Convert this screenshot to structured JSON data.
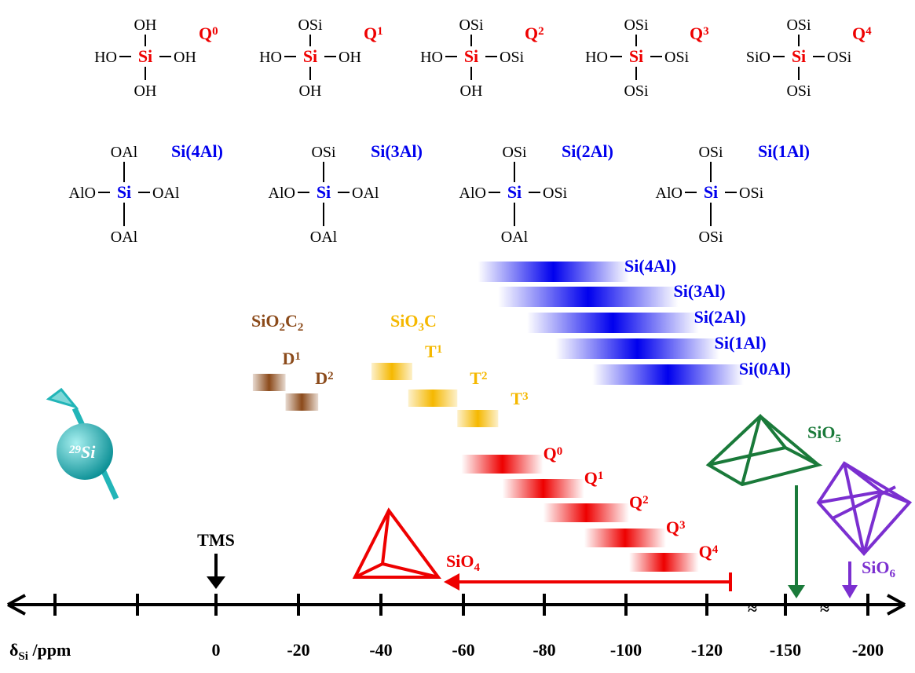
{
  "q_structures": [
    {
      "center": "Si",
      "top": "OH",
      "left": "HO",
      "right": "OH",
      "bottom": "OH",
      "label": "Q",
      "sup": "0"
    },
    {
      "center": "Si",
      "top": "OSi",
      "left": "HO",
      "right": "OH",
      "bottom": "OH",
      "label": "Q",
      "sup": "1"
    },
    {
      "center": "Si",
      "top": "OSi",
      "left": "HO",
      "right": "OSi",
      "bottom": "OH",
      "label": "Q",
      "sup": "2"
    },
    {
      "center": "Si",
      "top": "OSi",
      "left": "HO",
      "right": "OSi",
      "bottom": "OSi",
      "label": "Q",
      "sup": "3"
    },
    {
      "center": "Si",
      "top": "OSi",
      "left": "SiO",
      "right": "OSi",
      "bottom": "OSi",
      "label": "Q",
      "sup": "4"
    }
  ],
  "al_structures": [
    {
      "center": "Si",
      "top": "OAl",
      "left": "AlO",
      "right": "OAl",
      "bottom": "OAl",
      "label": "Si(4Al)"
    },
    {
      "center": "Si",
      "top": "OSi",
      "left": "AlO",
      "right": "OAl",
      "bottom": "OAl",
      "label": "Si(3Al)"
    },
    {
      "center": "Si",
      "top": "OSi",
      "left": "AlO",
      "right": "OSi",
      "bottom": "OAl",
      "label": "Si(2Al)"
    },
    {
      "center": "Si",
      "top": "OSi",
      "left": "AlO",
      "right": "OSi",
      "bottom": "OSi",
      "label": "Si(1Al)"
    }
  ],
  "si_al_ranges": [
    {
      "name": "Si(4Al)",
      "from": -64,
      "to": -101
    },
    {
      "name": "Si(3Al)",
      "from": -69,
      "to": -113
    },
    {
      "name": "Si(2Al)",
      "from": -76,
      "to": -118
    },
    {
      "name": "Si(1Al)",
      "from": -83,
      "to": -123
    },
    {
      "name": "Si(0Al)",
      "from": -92,
      "to": -129
    }
  ],
  "d_group": {
    "parts": [
      "SiO",
      "2",
      "C",
      "2"
    ]
  },
  "d_ranges": [
    {
      "name": "D",
      "sup": "1",
      "from": -9,
      "to": -17
    },
    {
      "name": "D",
      "sup": "2",
      "from": -17,
      "to": -25
    }
  ],
  "t_group": {
    "parts": [
      "SiO",
      "3",
      "C"
    ]
  },
  "t_ranges": [
    {
      "name": "T",
      "sup": "1",
      "from": -38,
      "to": -48
    },
    {
      "name": "T",
      "sup": "2",
      "from": -47,
      "to": -59
    },
    {
      "name": "T",
      "sup": "3",
      "from": -59,
      "to": -69
    }
  ],
  "q_ranges": [
    {
      "name": "Q",
      "sup": "0",
      "from": -60,
      "to": -80
    },
    {
      "name": "Q",
      "sup": "1",
      "from": -70,
      "to": -90
    },
    {
      "name": "Q",
      "sup": "2",
      "from": -80,
      "to": -101
    },
    {
      "name": "Q",
      "sup": "3",
      "from": -90,
      "to": -110
    },
    {
      "name": "Q",
      "sup": "4",
      "from": -101,
      "to": -118
    }
  ],
  "sio4": {
    "parts": [
      "SiO",
      "4"
    ]
  },
  "sio5": {
    "parts": [
      "SiO",
      "5"
    ]
  },
  "sio6": {
    "parts": [
      "SiO",
      "6"
    ]
  },
  "tms": "TMS",
  "isotope": {
    "mass": "29",
    "symbol": "Si"
  },
  "axis": {
    "symbol": "δ",
    "sub": "Si",
    "unit": " /ppm",
    "ticks": [
      0,
      -20,
      -40,
      -60,
      -80,
      -100,
      -120,
      -150,
      -200
    ],
    "breaks": [
      "≈",
      "≈"
    ]
  }
}
